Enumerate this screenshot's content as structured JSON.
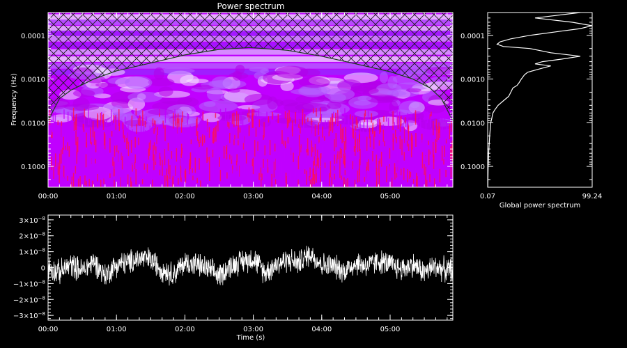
{
  "chart_data": [
    {
      "type": "heatmap",
      "title": "Power spectrum",
      "xlabel": "",
      "ylabel": "Frequency (Hz)",
      "x_ticks": [
        "00:00",
        "01:00",
        "02:00",
        "03:00",
        "04:00",
        "05:00"
      ],
      "x_tick_seconds": [
        0,
        60,
        120,
        180,
        240,
        300
      ],
      "x_range_seconds": [
        0,
        355
      ],
      "y_ticks": [
        "0.0001",
        "0.0010",
        "0.0100",
        "0.1000"
      ],
      "y_tick_values": [
        0.0001,
        0.001,
        0.01,
        0.1
      ],
      "y_range": [
        3e-05,
        0.3
      ],
      "y_scale": "log-reversed",
      "colors": [
        "#b400ff",
        "#ffffff",
        "#ff0040"
      ],
      "cone_of_influence": {
        "time_s": [
          0,
          10,
          20,
          40,
          60,
          90,
          120,
          150,
          177,
          210,
          240,
          270,
          300,
          320,
          335,
          345,
          355
        ],
        "frequency_hz": [
          0.009,
          0.0028,
          0.0018,
          0.001,
          0.00065,
          0.00043,
          0.00028,
          0.00021,
          0.00019,
          0.00022,
          0.0003,
          0.00045,
          0.00068,
          0.001,
          0.0016,
          0.0028,
          0.009
        ]
      }
    },
    {
      "type": "line",
      "xlabel": "Global power spectrum",
      "x_tick_labels": [
        "0.07",
        "99.24"
      ],
      "x_range": [
        0.07,
        99.24
      ],
      "y_scale": "log-reversed",
      "series": [
        {
          "frequency_hz": [
            3e-05,
            3.5e-05,
            4e-05,
            5e-05,
            6e-05,
            7e-05,
            8e-05,
            0.0001,
            0.00012,
            0.00014,
            0.00016,
            0.00018,
            0.0002,
            0.00025,
            0.0003,
            0.00035,
            0.0004,
            0.00045,
            0.0005,
            0.0006,
            0.0007,
            0.0008,
            0.001,
            0.0012,
            0.0014,
            0.0016,
            0.002,
            0.0025,
            0.003,
            0.004,
            0.005,
            0.006,
            0.008,
            0.01,
            0.02,
            0.05,
            0.1,
            0.3
          ],
          "power": [
            88,
            65,
            45,
            80,
            99,
            88,
            70,
            40,
            22,
            12,
            9,
            15,
            40,
            60,
            88,
            70,
            52,
            45,
            60,
            48,
            38,
            35,
            32,
            30,
            28,
            24,
            22,
            20,
            16,
            10,
            7,
            5,
            4,
            3,
            2,
            1,
            0.5,
            0.2
          ]
        }
      ]
    },
    {
      "type": "line",
      "xlabel": "Time (s)",
      "ylabel": "",
      "x_ticks": [
        "00:00",
        "01:00",
        "02:00",
        "03:00",
        "04:00",
        "05:00"
      ],
      "x_tick_seconds": [
        0,
        60,
        120,
        180,
        240,
        300
      ],
      "x_range_seconds": [
        0,
        355
      ],
      "y_ticks": [
        {
          "v": 3e-08,
          "m": "3×10",
          "e": "−8"
        },
        {
          "v": 2e-08,
          "m": "2×10",
          "e": "−8"
        },
        {
          "v": 1e-08,
          "m": "1×10",
          "e": "−8"
        },
        {
          "v": 0,
          "m": "0",
          "e": ""
        },
        {
          "v": -1e-08,
          "m": "−1×10",
          "e": "−8"
        },
        {
          "v": -2e-08,
          "m": "−2×10",
          "e": "−8"
        },
        {
          "v": -3e-08,
          "m": "−3×10",
          "e": "−8"
        }
      ],
      "ylim": [
        -3.3e-08,
        3.3e-08
      ],
      "series": [
        {
          "t_s": [
            0,
            10,
            20,
            30,
            40,
            50,
            60,
            70,
            80,
            90,
            100,
            110,
            120,
            130,
            140,
            150,
            160,
            170,
            180,
            190,
            200,
            210,
            220,
            230,
            240,
            250,
            260,
            270,
            280,
            290,
            300,
            310,
            320,
            330,
            340,
            350,
            355
          ],
          "mean_flux": [
            0,
            -3e-09,
            2e-09,
            -2e-09,
            4e-09,
            -5e-09,
            2e-09,
            3e-09,
            6e-09,
            5e-09,
            -1e-09,
            -4e-09,
            3e-09,
            2e-09,
            -1e-09,
            -5e-09,
            1e-09,
            4e-09,
            6e-09,
            -3e-09,
            2e-09,
            5e-09,
            3e-09,
            9e-09,
            2e-09,
            1e-09,
            -2e-09,
            3e-09,
            1e-09,
            4e-09,
            2e-09,
            -1e-09,
            2e-09,
            -3e-09,
            1e-09,
            -2e-09,
            0
          ],
          "noise_amplitude": 9e-09
        }
      ]
    }
  ]
}
